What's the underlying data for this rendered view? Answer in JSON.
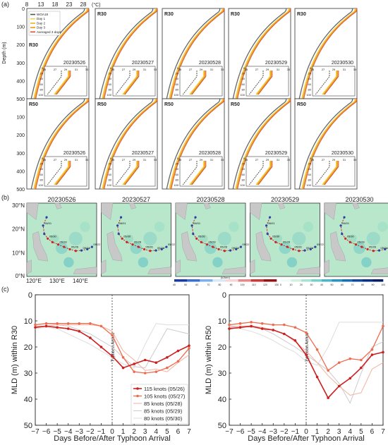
{
  "panel_a": {
    "letter": "(a)",
    "temp_ticks": [
      "8",
      "13",
      "18",
      "23",
      "28"
    ],
    "temp_unit": "(°C)",
    "depth_label": "Depth (m)",
    "depth_ticks": [
      "0",
      "100",
      "200",
      "300",
      "400",
      "500"
    ],
    "legend": [
      "WOA18",
      "Day 1",
      "Day 2",
      "Day 3",
      "Averaged 3 days"
    ],
    "region_rows": [
      "R30",
      "R50"
    ],
    "dates": [
      "20230526",
      "20230527",
      "20230528",
      "20230529",
      "20230530"
    ],
    "inset_x_ticks": [
      "25",
      "27",
      "29",
      "31",
      "33"
    ],
    "inset_y_ticks": [
      "0",
      "20",
      "40",
      "60",
      "80",
      "100"
    ]
  },
  "panel_b": {
    "letter": "(b)",
    "dates": [
      "20230526",
      "20230527",
      "20230528",
      "20230529",
      "20230530"
    ],
    "lat_ticks": [
      "30°N",
      "20°N",
      "10°N",
      "0°N"
    ],
    "lon_ticks": [
      "120°E",
      "130°E",
      "140°E"
    ],
    "colorbar1": {
      "ticks": [
        "40",
        "50",
        "60",
        "70",
        "80",
        "90",
        "100",
        "110",
        "120",
        "130"
      ],
      "unit": "(kJ/cm²)"
    },
    "colorbar2": {
      "ticks": [
        "0",
        "10",
        "20",
        "30",
        "40",
        "50",
        "60",
        "70",
        "80",
        "90",
        "100"
      ]
    },
    "track_labels": [
      "05/22",
      "05/23",
      "05/24",
      "05/25",
      "05/26",
      "05/27",
      "05/28",
      "05/29",
      "05/30",
      "05/31",
      "06/01",
      "06/02"
    ],
    "colors": {
      "ocean": "#b9e7cc",
      "land": "#c8c8c8",
      "track": "#2244aa",
      "track_hot": "#cc2222"
    }
  },
  "panel_c": {
    "letter": "(c)",
    "arrival_label": "Typhoon Arrival"
  },
  "chart_data": [
    {
      "type": "line",
      "xlabel": "Days Before/After Typhoon Arrival",
      "ylabel": "MLD (m) within R30",
      "x": [
        -7,
        -6,
        -5,
        -4,
        -3,
        -2,
        -1,
        0,
        1,
        2,
        3,
        4,
        5,
        6,
        7
      ],
      "x_ticks": [
        "−7",
        "−6",
        "−5",
        "−4",
        "−3",
        "−2",
        "−1",
        "0",
        "1",
        "2",
        "3",
        "4",
        "5",
        "6",
        "7"
      ],
      "ylim": [
        0,
        50
      ],
      "y_ticks": [
        "0",
        "10",
        "20",
        "30",
        "40",
        "50"
      ],
      "y_inverted": true,
      "legend_position": "bottom-right",
      "series": [
        {
          "name": "115 knots (05/26)",
          "color": "#cc1f1f",
          "width": 1.6,
          "marker": "dot",
          "values": [
            12.5,
            12,
            12.5,
            13,
            14,
            16.5,
            20,
            23.5,
            28,
            26.5,
            25,
            26,
            24,
            21.5,
            19.5
          ]
        },
        {
          "name": "105 knots (05/27)",
          "color": "#ef6b4e",
          "width": 1.3,
          "marker": "dot",
          "values": [
            11.5,
            11,
            11,
            11,
            11,
            11,
            12,
            15.5,
            24,
            29.5,
            30,
            29.5,
            28,
            25.5,
            20.5
          ]
        },
        {
          "name": "85 knots (05/28)",
          "color": "#f2b2a0",
          "width": 1,
          "marker": "none",
          "values": [
            12,
            12,
            11.5,
            11.5,
            11.5,
            11.5,
            12,
            14,
            21.5,
            25,
            29,
            28.5,
            29.5,
            26,
            23
          ]
        },
        {
          "name": "85 knots (05/29)",
          "color": "#cccccc",
          "width": 1,
          "marker": "none",
          "values": [
            11.5,
            11,
            11.5,
            12,
            13.5,
            15,
            17.5,
            20,
            24,
            27.5,
            28,
            20.5,
            13,
            14,
            15
          ]
        },
        {
          "name": "80 knots (05/30)",
          "color": "#dddddd",
          "width": 1,
          "marker": "none",
          "values": [
            13,
            12.5,
            13,
            15,
            17,
            19,
            21.5,
            24,
            26.5,
            28,
            19,
            11,
            11.5,
            11.5,
            11.5
          ]
        }
      ]
    },
    {
      "type": "line",
      "xlabel": "Days Before/After Typhoon Arrival",
      "ylabel": "MLD (m) within R50",
      "x": [
        -7,
        -6,
        -5,
        -4,
        -3,
        -2,
        -1,
        0,
        1,
        2,
        3,
        4,
        5,
        6,
        7
      ],
      "x_ticks": [
        "−7",
        "−6",
        "−5",
        "−4",
        "−3",
        "−2",
        "−1",
        "0",
        "1",
        "2",
        "3",
        "4",
        "5",
        "6",
        "7"
      ],
      "ylim": [
        0,
        50
      ],
      "y_ticks": [
        "0",
        "10",
        "20",
        "30",
        "40",
        "50"
      ],
      "y_inverted": true,
      "series": [
        {
          "name": "115 knots (05/26)",
          "color": "#cc1f1f",
          "width": 1.6,
          "marker": "dot",
          "values": [
            13,
            12.5,
            12,
            13,
            13.5,
            15,
            17.5,
            23,
            31.5,
            39.5,
            35,
            32,
            28,
            23,
            22
          ]
        },
        {
          "name": "105 knots (05/27)",
          "color": "#ef6b4e",
          "width": 1.3,
          "marker": "dot",
          "values": [
            11.5,
            11,
            10.5,
            11,
            11.5,
            11.5,
            12.5,
            14.5,
            21,
            29,
            26,
            24.5,
            25,
            21,
            12
          ]
        },
        {
          "name": "85 knots (05/28)",
          "color": "#f2b2a0",
          "width": 1,
          "marker": "none",
          "values": [
            12.5,
            12,
            12,
            12.5,
            13.5,
            15,
            18,
            21.5,
            26,
            31,
            35,
            38.5,
            37.5,
            28.5,
            26
          ]
        },
        {
          "name": "85 knots (05/29)",
          "color": "#cccccc",
          "width": 1,
          "marker": "none",
          "values": [
            12,
            12,
            12.5,
            13,
            15,
            17.5,
            20,
            23,
            26,
            29,
            34,
            41.5,
            30,
            20,
            18
          ]
        },
        {
          "name": "80 knots (05/30)",
          "color": "#dddddd",
          "width": 1,
          "marker": "none",
          "values": [
            12.5,
            13,
            14,
            15.5,
            17.5,
            20,
            22,
            25.5,
            27,
            20,
            10.5,
            10.5,
            10.5,
            10.5,
            10.5
          ]
        }
      ]
    }
  ]
}
